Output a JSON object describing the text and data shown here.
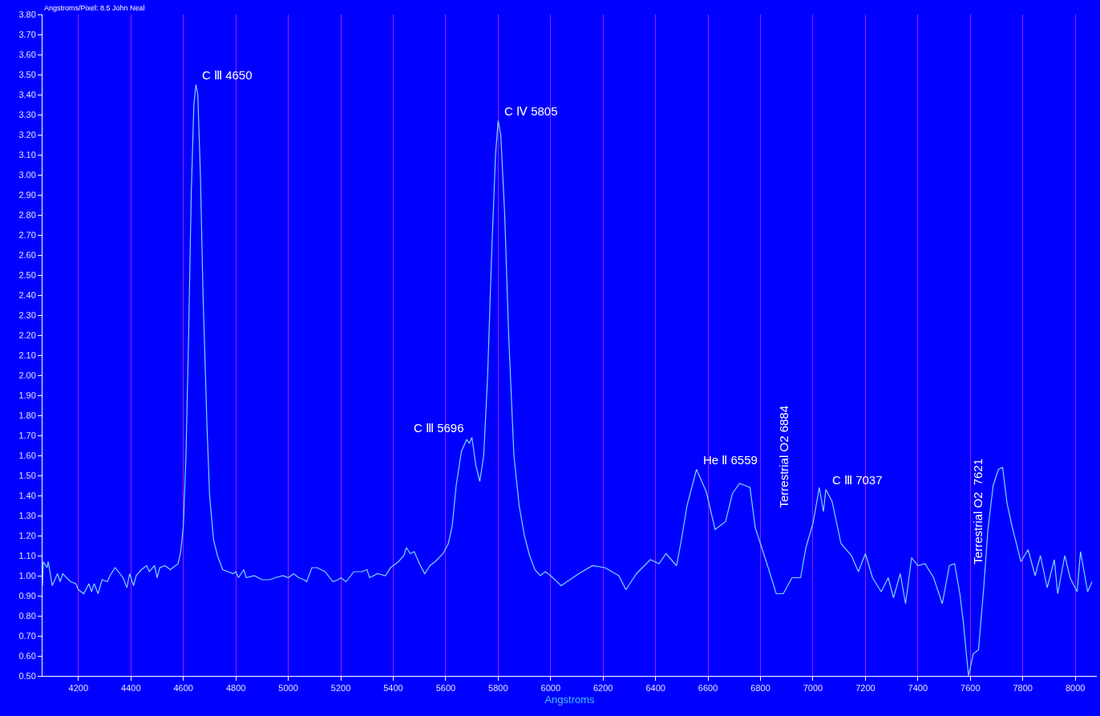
{
  "chart_data": {
    "type": "line",
    "xlabel": "Angstroms",
    "annotations": [
      "Angstroms/Pixel: 8.5 John Neal",
      {
        "text": "C Ⅲ 4650",
        "x": 4648,
        "y": 3.45
      },
      {
        "text": "C Ⅲ 5696",
        "x": 5696,
        "y": 1.69
      },
      {
        "text": "C Ⅳ 5805",
        "x": 5800,
        "y": 3.27
      },
      {
        "text": "He Ⅱ 6559",
        "x": 6556,
        "y": 1.53
      },
      "Terrestrial O2 6884",
      {
        "text": "C Ⅲ 7037",
        "x": 7049,
        "y": 1.43
      },
      "Terrestrial O2  7621"
    ],
    "series": [
      {
        "color": "#80d8ff",
        "x": [
          4063,
          4066,
          4080,
          4085,
          4100,
          4120,
          4130,
          4140,
          4170,
          4190,
          4200,
          4220,
          4240,
          4250,
          4260,
          4275,
          4290,
          4310,
          4320,
          4340,
          4370,
          4385,
          4395,
          4410,
          4420,
          4440,
          4460,
          4470,
          4490,
          4500,
          4510,
          4530,
          4550,
          4580,
          4590,
          4600,
          4610,
          4620,
          4630,
          4640,
          4648,
          4655,
          4665,
          4675,
          4690,
          4700,
          4715,
          4730,
          4750,
          4770,
          4790,
          4800,
          4810,
          4830,
          4840,
          4870,
          4900,
          4930,
          4950,
          4980,
          5000,
          5020,
          5040,
          5060,
          5070,
          5090,
          5110,
          5140,
          5170,
          5190,
          5200,
          5220,
          5250,
          5280,
          5300,
          5310,
          5340,
          5370,
          5390,
          5420,
          5440,
          5450,
          5465,
          5480,
          5500,
          5520,
          5540,
          5560,
          5590,
          5610,
          5625,
          5640,
          5660,
          5680,
          5690,
          5700,
          5715,
          5730,
          5745,
          5760,
          5775,
          5790,
          5800,
          5810,
          5825,
          5840,
          5860,
          5880,
          5900,
          5920,
          5940,
          5960,
          5980,
          6000,
          6040,
          6107,
          6160,
          6207,
          6260,
          6287,
          6327,
          6380,
          6413,
          6440,
          6480,
          6500,
          6520,
          6556,
          6593,
          6627,
          6667,
          6693,
          6720,
          6760,
          6780,
          6827,
          6860,
          6887,
          6920,
          6953,
          6973,
          7000,
          7024,
          7040,
          7049,
          7073,
          7107,
          7147,
          7173,
          7200,
          7227,
          7260,
          7287,
          7307,
          7333,
          7353,
          7376,
          7400,
          7427,
          7460,
          7493,
          7520,
          7540,
          7560,
          7573,
          7593,
          7611,
          7631,
          7651,
          7667,
          7687,
          7707,
          7723,
          7740,
          7760,
          7793,
          7820,
          7847,
          7867,
          7893,
          7920,
          7933,
          7960,
          7980,
          8007,
          8020,
          8047,
          8064
        ],
        "values": [
          0.95,
          1.07,
          1.04,
          1.07,
          0.95,
          1.01,
          0.97,
          1.01,
          0.97,
          0.96,
          0.93,
          0.91,
          0.96,
          0.92,
          0.96,
          0.91,
          0.98,
          0.97,
          1.0,
          1.04,
          0.99,
          0.94,
          1.01,
          0.95,
          1.0,
          1.03,
          1.05,
          1.02,
          1.05,
          0.99,
          1.04,
          1.05,
          1.03,
          1.06,
          1.12,
          1.25,
          1.6,
          2.2,
          2.9,
          3.35,
          3.45,
          3.4,
          3.0,
          2.4,
          1.75,
          1.4,
          1.18,
          1.1,
          1.03,
          1.02,
          1.01,
          1.02,
          0.99,
          1.03,
          0.99,
          1.0,
          0.98,
          0.98,
          0.99,
          1.0,
          0.99,
          1.01,
          0.99,
          0.98,
          0.97,
          1.04,
          1.04,
          1.02,
          0.97,
          0.98,
          0.99,
          0.97,
          1.02,
          1.02,
          1.03,
          0.99,
          1.01,
          1.0,
          1.04,
          1.07,
          1.1,
          1.14,
          1.11,
          1.12,
          1.06,
          1.01,
          1.05,
          1.07,
          1.11,
          1.16,
          1.25,
          1.45,
          1.62,
          1.68,
          1.66,
          1.69,
          1.55,
          1.47,
          1.6,
          2.0,
          2.6,
          3.1,
          3.27,
          3.2,
          2.8,
          2.2,
          1.6,
          1.35,
          1.2,
          1.1,
          1.03,
          1.0,
          1.02,
          1.0,
          0.95,
          1.01,
          1.05,
          1.04,
          1.0,
          0.93,
          1.01,
          1.08,
          1.06,
          1.11,
          1.05,
          1.19,
          1.35,
          1.53,
          1.42,
          1.23,
          1.27,
          1.41,
          1.46,
          1.44,
          1.24,
          1.05,
          0.91,
          0.91,
          0.99,
          0.99,
          1.14,
          1.26,
          1.44,
          1.32,
          1.43,
          1.37,
          1.16,
          1.1,
          1.02,
          1.11,
          0.99,
          0.92,
          0.99,
          0.89,
          1.01,
          0.86,
          1.09,
          1.05,
          1.06,
          0.99,
          0.86,
          1.05,
          1.06,
          0.91,
          0.77,
          0.5,
          0.61,
          0.63,
          0.94,
          1.23,
          1.45,
          1.53,
          1.54,
          1.36,
          1.24,
          1.07,
          1.13,
          1.0,
          1.1,
          0.94,
          1.08,
          0.91,
          1.1,
          0.99,
          0.92,
          1.12,
          0.92,
          0.97
        ]
      }
    ],
    "xlim": [
      4063,
      8082
    ],
    "ylim": [
      0.5,
      3.8
    ],
    "xticks": [
      4200,
      4400,
      4600,
      4800,
      5000,
      5200,
      5400,
      5600,
      5800,
      6000,
      6200,
      6400,
      6600,
      6800,
      7000,
      7200,
      7400,
      7600,
      7800,
      8000
    ],
    "yticks": [
      {
        "value": 0.5,
        "label": "0.50"
      },
      {
        "value": 0.6,
        "label": "0.60"
      },
      {
        "value": 0.7,
        "label": "0.70"
      },
      {
        "value": 0.8,
        "label": "0.80"
      },
      {
        "value": 0.9,
        "label": "0.90"
      },
      {
        "value": 1.0,
        "label": "1.00"
      },
      {
        "value": 1.1,
        "label": "1.10"
      },
      {
        "value": 1.2,
        "label": "1.20"
      },
      {
        "value": 1.3,
        "label": "1.30"
      },
      {
        "value": 1.4,
        "label": "1.40"
      },
      {
        "value": 1.5,
        "label": "1.50"
      },
      {
        "value": 1.6,
        "label": "1.60"
      },
      {
        "value": 1.7,
        "label": "1.70"
      },
      {
        "value": 1.8,
        "label": "1.80"
      },
      {
        "value": 1.9,
        "label": "1.90"
      },
      {
        "value": 2.0,
        "label": "2.00"
      },
      {
        "value": 2.1,
        "label": "2.10"
      },
      {
        "value": 2.2,
        "label": "2.20"
      },
      {
        "value": 2.3,
        "label": "2.30"
      },
      {
        "value": 2.4,
        "label": "2.40"
      },
      {
        "value": 2.5,
        "label": "2.50"
      },
      {
        "value": 2.6,
        "label": "2.60"
      },
      {
        "value": 2.7,
        "label": "2.70"
      },
      {
        "value": 2.8,
        "label": "2.80"
      },
      {
        "value": 2.9,
        "label": "2.90"
      },
      {
        "value": 3.0,
        "label": "3.00"
      },
      {
        "value": 3.1,
        "label": "3.10"
      },
      {
        "value": 3.2,
        "label": "3.20"
      },
      {
        "value": 3.3,
        "label": "3.30"
      },
      {
        "value": 3.4,
        "label": "3.40"
      },
      {
        "value": 3.5,
        "label": "3.50"
      },
      {
        "value": 3.6,
        "label": "3.60"
      },
      {
        "value": 3.7,
        "label": "3.70"
      },
      {
        "value": 3.8,
        "label": "3.80"
      }
    ],
    "grid": "x",
    "line_style": "solid"
  }
}
